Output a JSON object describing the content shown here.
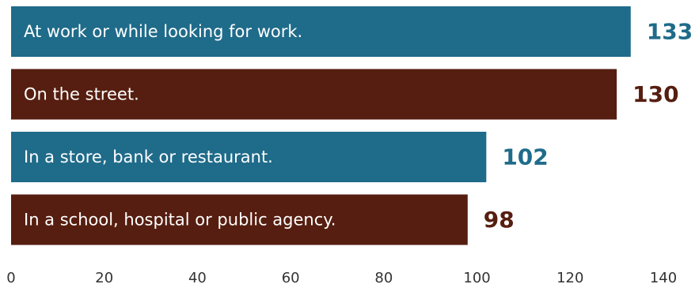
{
  "chart_data": {
    "type": "bar",
    "orientation": "horizontal",
    "categories": [
      "At work or while looking for work.",
      "On the street.",
      "In a store, bank or restaurant.",
      "In a school, hospital or public agency."
    ],
    "values": [
      133,
      130,
      102,
      98
    ],
    "value_labels": [
      "133",
      "130",
      "102",
      "98"
    ],
    "bar_colors": [
      "#1f6b8a",
      "#561e10",
      "#1f6b8a",
      "#561e10"
    ],
    "xlim": [
      0,
      140
    ],
    "x_ticks": [
      0,
      20,
      40,
      60,
      80,
      100,
      120,
      140
    ],
    "x_tick_labels": [
      "0",
      "20",
      "40",
      "60",
      "80",
      "100",
      "120",
      "140"
    ],
    "grid": false,
    "legend": "none"
  }
}
